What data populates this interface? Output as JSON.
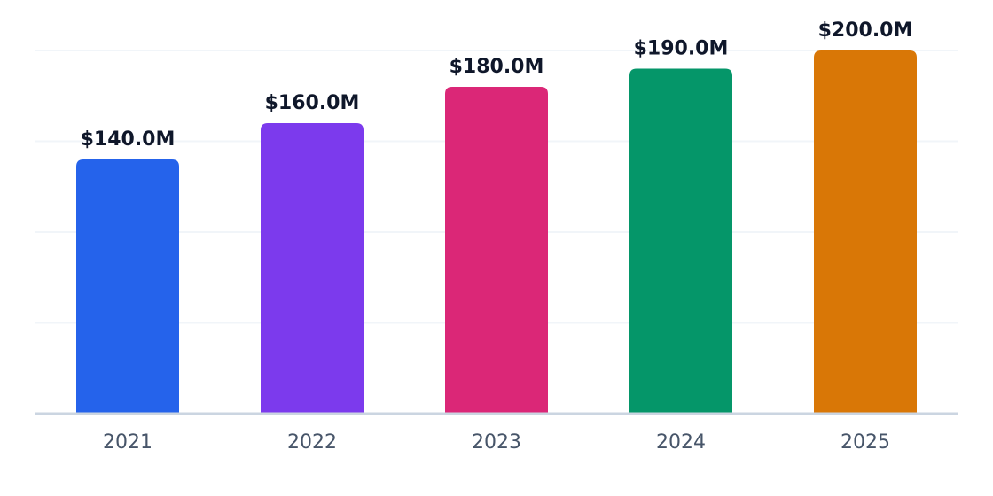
{
  "chart_data": {
    "type": "bar",
    "categories": [
      "2021",
      "2022",
      "2023",
      "2024",
      "2025"
    ],
    "values": [
      140,
      160,
      180,
      190,
      200
    ],
    "value_labels": [
      "$140.0M",
      "$160.0M",
      "$180.0M",
      "$190.0M",
      "$200.0M"
    ],
    "colors": [
      "#2563eb",
      "#7c3aed",
      "#db2777",
      "#059669",
      "#d97706"
    ],
    "ylim": [
      0,
      200
    ],
    "yticks": [
      0,
      50,
      100,
      150,
      200
    ],
    "grid": true
  }
}
